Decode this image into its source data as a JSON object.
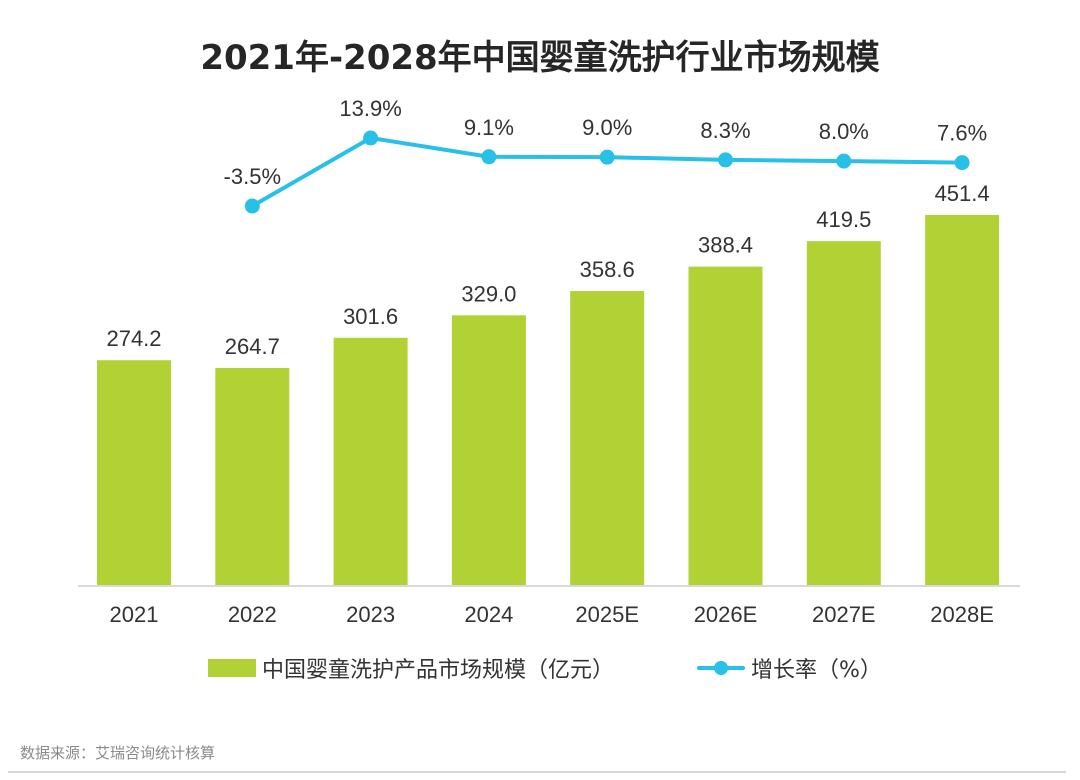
{
  "chart_data": {
    "type": "bar",
    "title": "2021年-2028年中国婴童洗护行业市场规模",
    "categories": [
      "2021",
      "2022",
      "2023",
      "2024",
      "2025E",
      "2026E",
      "2027E",
      "2028E"
    ],
    "series": [
      {
        "name": "中国婴童洗护产品市场规模（亿元）",
        "type": "bar",
        "color": "#b1d135",
        "values": [
          274.2,
          264.7,
          301.6,
          329.0,
          358.6,
          388.4,
          419.5,
          451.4
        ],
        "labels": [
          "274.2",
          "264.7",
          "301.6",
          "329.0",
          "358.6",
          "388.4",
          "419.5",
          "451.4"
        ]
      },
      {
        "name": "增长率（%）",
        "type": "line",
        "color": "#29c0e8",
        "values": [
          null,
          -3.5,
          13.9,
          9.1,
          9.0,
          8.3,
          8.0,
          7.6
        ],
        "labels": [
          "",
          "-3.5%",
          "13.9%",
          "9.1%",
          "9.0%",
          "8.3%",
          "8.0%",
          "7.6%"
        ]
      }
    ],
    "xlabel": "",
    "ylabel": "",
    "axes_visible": false,
    "grid": false,
    "legend": "bottom-center"
  },
  "legend": {
    "bar_label": "中国婴童洗护产品市场规模（亿元）",
    "line_label": "增长率（%）"
  },
  "source": "数据来源：艾瑞咨询统计核算"
}
